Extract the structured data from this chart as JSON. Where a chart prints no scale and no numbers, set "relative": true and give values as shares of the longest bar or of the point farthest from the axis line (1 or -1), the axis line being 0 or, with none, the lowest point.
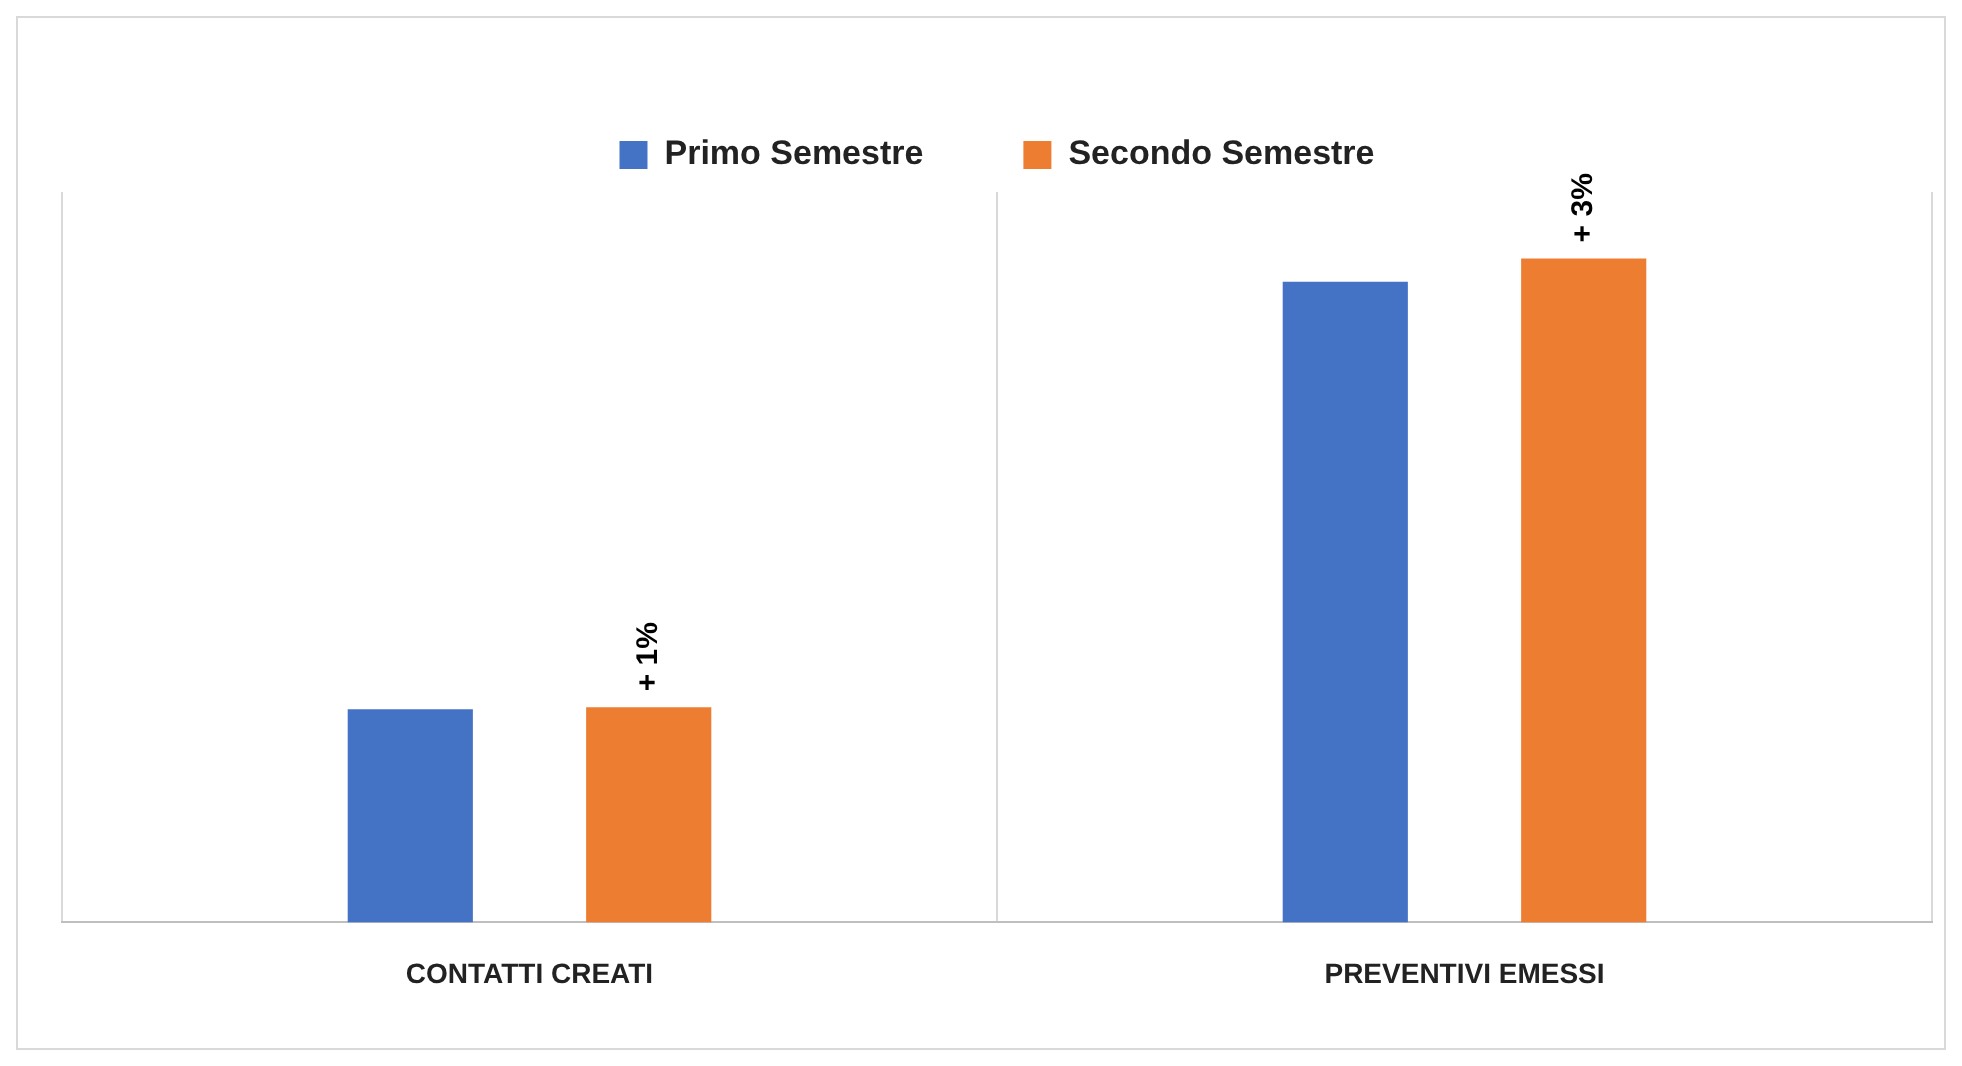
{
  "chart_data": {
    "type": "bar",
    "relative": true,
    "categories": [
      "CONTATTI CREATI",
      "PREVENTIVI EMESSI"
    ],
    "series": [
      {
        "name": "Primo Semestre",
        "color": "#4472c4",
        "values": [
          0.321,
          0.965
        ]
      },
      {
        "name": "Secondo Semestre",
        "color": "#ed7d31",
        "values": [
          0.324,
          1
        ]
      }
    ],
    "annotations": [
      "+ 1%",
      "+ 3%"
    ],
    "grid": "x",
    "legend": "top"
  }
}
